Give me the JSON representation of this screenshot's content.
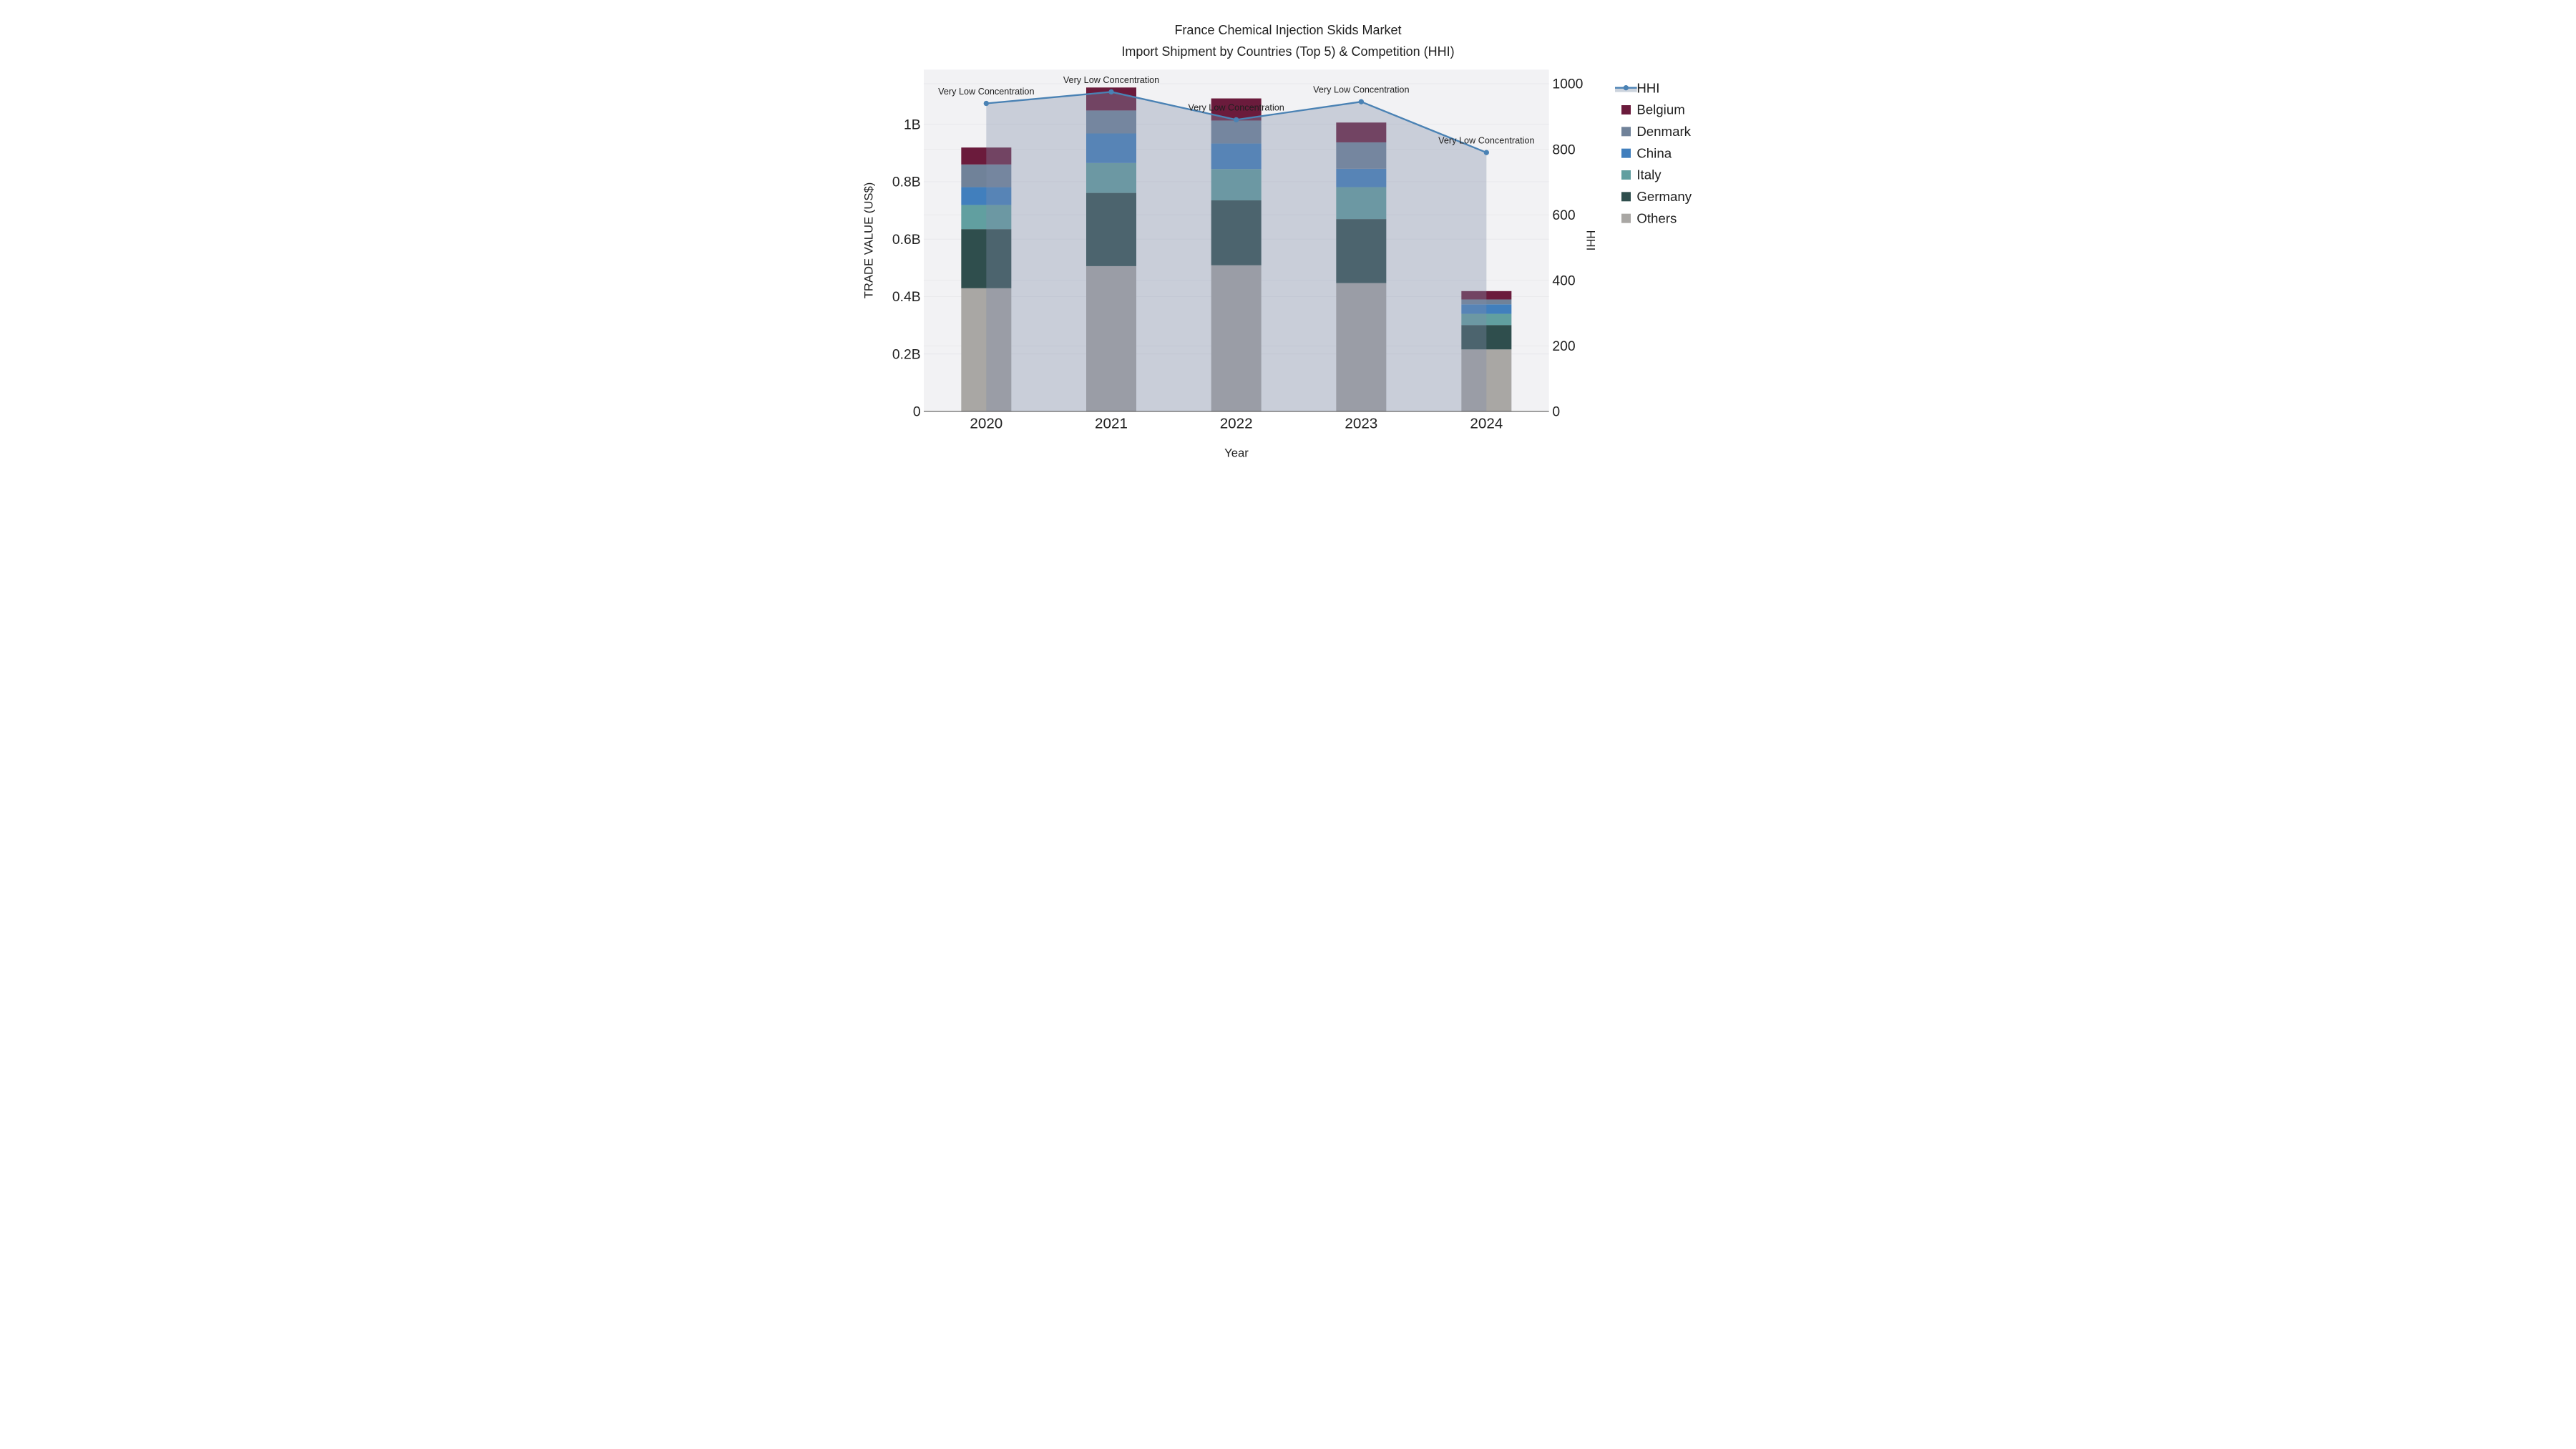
{
  "title": {
    "line1": "France Chemical Injection Skids Market",
    "line2": "Import Shipment by Countries (Top 5) & Competition (HHI)"
  },
  "axes": {
    "x": {
      "title": "Year",
      "ticks": [
        "2020",
        "2021",
        "2022",
        "2023",
        "2024"
      ]
    },
    "y_left": {
      "title": "TRADE VALUE (US$)",
      "ticks": [
        "0",
        "0.2B",
        "0.4B",
        "0.6B",
        "0.8B",
        "1B"
      ],
      "tick_values": [
        0,
        0.2,
        0.4,
        0.6,
        0.8,
        1.0
      ]
    },
    "y_right": {
      "title": "HHI",
      "ticks": [
        "0",
        "200",
        "400",
        "600",
        "800",
        "1000"
      ],
      "tick_values": [
        0,
        200,
        400,
        600,
        800,
        1000
      ]
    }
  },
  "legend": [
    {
      "label": "HHI",
      "type": "line",
      "color": "#4a82b4",
      "fill": "#ccd3dd"
    },
    {
      "label": "Belgium",
      "type": "square",
      "color": "#6b1b3c"
    },
    {
      "label": "Denmark",
      "type": "square",
      "color": "#708299"
    },
    {
      "label": "China",
      "type": "square",
      "color": "#417fbd"
    },
    {
      "label": "Italy",
      "type": "square",
      "color": "#619fa0"
    },
    {
      "label": "Germany",
      "type": "square",
      "color": "#2f4e4d"
    },
    {
      "label": "Others",
      "type": "square",
      "color": "#a9a7a4"
    }
  ],
  "chart_data": {
    "type": "bar+line",
    "title": "France Chemical Injection Skids Market — Import Shipment by Countries (Top 5) & Competition (HHI)",
    "xlabel": "Year",
    "ylabel": "TRADE VALUE (US$)",
    "y2label": "HHI",
    "categories": [
      "2020",
      "2021",
      "2022",
      "2023",
      "2024"
    ],
    "bar_unit": "billion US$",
    "stack_order_bottom_to_top": [
      "Others",
      "Germany",
      "Italy",
      "China",
      "Denmark",
      "Belgium"
    ],
    "series": [
      {
        "name": "Others",
        "color": "#a9a7a4",
        "values": [
          0.429,
          0.506,
          0.509,
          0.447,
          0.216
        ]
      },
      {
        "name": "Germany",
        "color": "#2f4e4d",
        "values": [
          0.206,
          0.255,
          0.226,
          0.223,
          0.085
        ]
      },
      {
        "name": "Italy",
        "color": "#619fa0",
        "values": [
          0.084,
          0.104,
          0.109,
          0.111,
          0.039
        ]
      },
      {
        "name": "China",
        "color": "#417fbd",
        "values": [
          0.062,
          0.103,
          0.089,
          0.064,
          0.033
        ]
      },
      {
        "name": "Denmark",
        "color": "#708299",
        "values": [
          0.079,
          0.08,
          0.08,
          0.092,
          0.017
        ]
      },
      {
        "name": "Belgium",
        "color": "#6b1b3c",
        "values": [
          0.059,
          0.08,
          0.077,
          0.069,
          0.029
        ]
      }
    ],
    "bar_totals": [
      0.919,
      1.128,
      1.09,
      1.006,
      0.419
    ],
    "line_series": {
      "name": "HHI",
      "axis": "y_right",
      "color": "#4a82b4",
      "area_fill": "rgba(128,142,168,0.36)",
      "values": [
        940,
        975,
        890,
        945,
        790
      ]
    },
    "annotations": [
      "Very Low Concentration",
      "Very Low Concentration",
      "Very Low Concentration",
      "Very Low Concentration",
      "Very Low Concentration"
    ],
    "ylim_left": [
      0,
      1.19
    ],
    "ylim_right": [
      0,
      1043
    ],
    "grid": "horizontal",
    "legend_position": "right"
  },
  "colors": {
    "figure_bg": "#ffffff",
    "plot_bg": "#f2f2f4",
    "grid": "#e4e4e8",
    "axis_line": "#454545",
    "text": "#1f1f1f",
    "annotation_text": "#111111"
  }
}
